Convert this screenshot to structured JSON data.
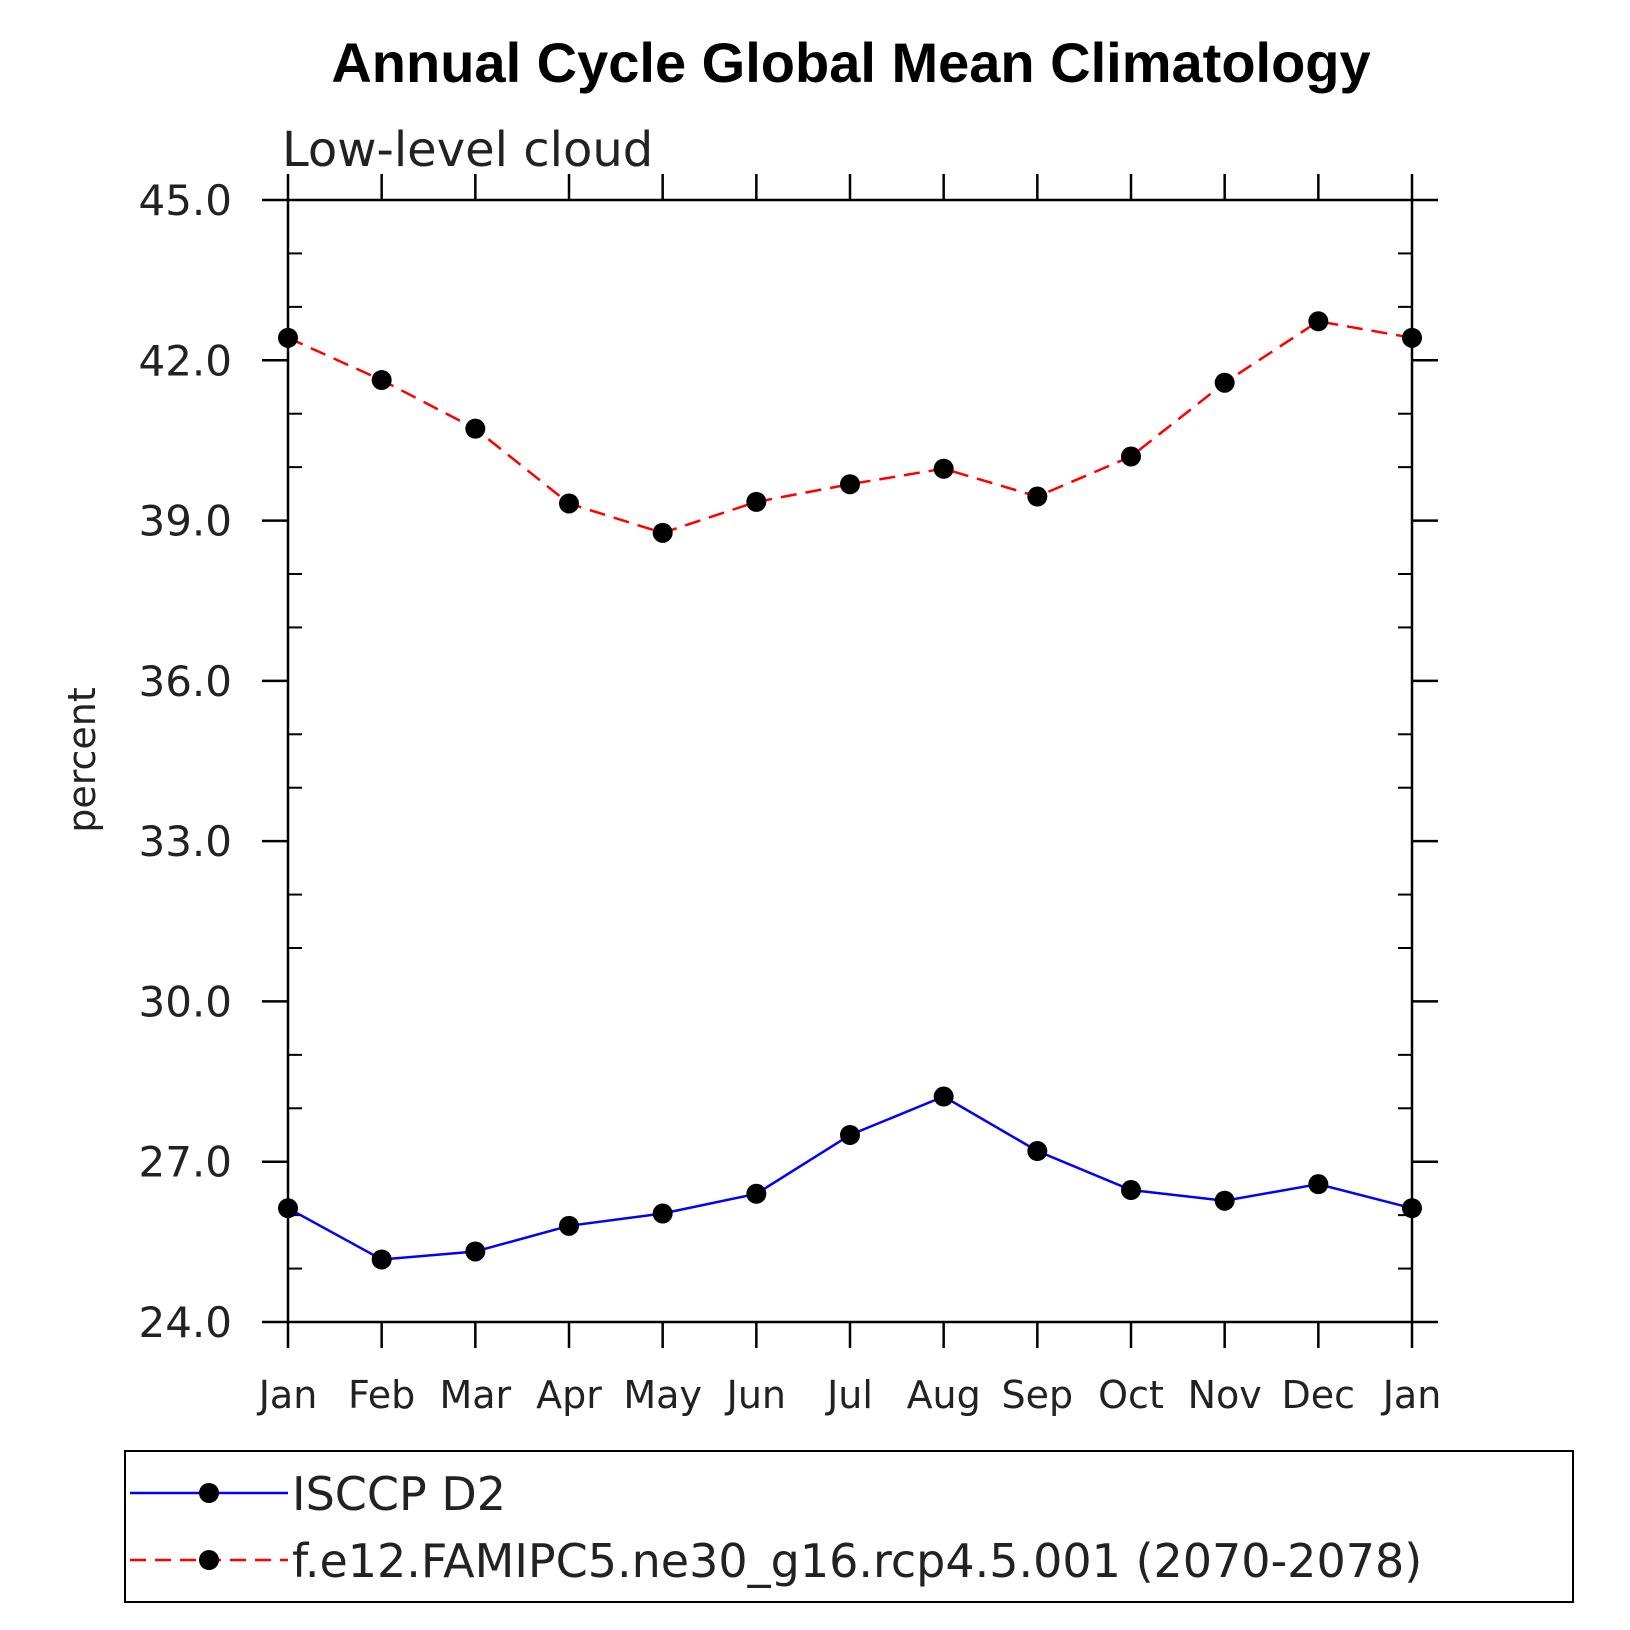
{
  "chart_data": {
    "type": "line",
    "title": "Annual Cycle Global Mean Climatology",
    "subtitle": "Low-level cloud",
    "xlabel": "",
    "ylabel": "percent",
    "ylim": [
      24,
      45
    ],
    "yticks": [
      "24.0",
      "27.0",
      "30.0",
      "33.0",
      "36.0",
      "39.0",
      "42.0",
      "45.0"
    ],
    "categories": [
      "Jan",
      "Feb",
      "Mar",
      "Apr",
      "May",
      "Jun",
      "Jul",
      "Aug",
      "Sep",
      "Oct",
      "Nov",
      "Dec",
      "Jan"
    ],
    "grid": false,
    "legend_position": "bottom",
    "series": [
      {
        "name": "ISCCP D2",
        "color": "#0000ff",
        "dash": "solid",
        "marker": "filled-circle",
        "values": [
          26.13,
          25.17,
          25.32,
          25.8,
          26.03,
          26.4,
          27.5,
          28.22,
          27.2,
          26.47,
          26.27,
          26.58,
          26.13
        ]
      },
      {
        "name": "f.e12.FAMIPC5.ne30_g16.rcp4.5.001 (2070-2078)",
        "color": "#ff0000",
        "dash": "dashed",
        "marker": "filled-circle",
        "values": [
          42.42,
          41.63,
          40.72,
          39.32,
          38.77,
          39.35,
          39.68,
          39.97,
          39.45,
          40.2,
          41.58,
          42.73,
          42.42
        ]
      }
    ]
  }
}
